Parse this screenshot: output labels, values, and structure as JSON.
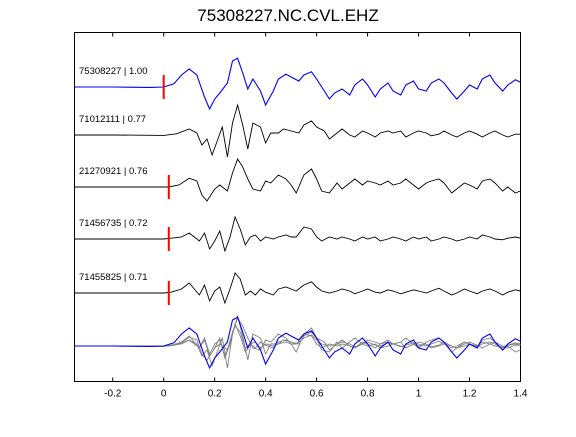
{
  "chart_data": {
    "type": "line",
    "title": "75308227.NC.CVL.EHZ",
    "xlabel": "",
    "ylabel": "",
    "xlim": [
      -0.35,
      1.4
    ],
    "x_ticks": [
      -0.2,
      0,
      0.2,
      0.4,
      0.6,
      0.8,
      1,
      1.2,
      1.4
    ],
    "x_tick_labels": [
      "-0.2",
      "0",
      "0.2",
      "0.4",
      "0.6",
      "0.8",
      "1",
      "1.2",
      "1.4"
    ],
    "grid": false,
    "colors": {
      "reference": "#0000ff",
      "match": "#000000",
      "overlay_match": "#808080",
      "pick_marker": "#ff0000"
    },
    "traces": [
      {
        "label": "75308227 | 1.00",
        "color_role": "reference",
        "pick_time": 0.0,
        "points": [
          [
            -0.35,
            0
          ],
          [
            -0.2,
            0
          ],
          [
            -0.05,
            -0.01
          ],
          [
            0,
            0
          ],
          [
            0.04,
            0.08
          ],
          [
            0.07,
            0.3
          ],
          [
            0.1,
            0.45
          ],
          [
            0.13,
            0.3
          ],
          [
            0.16,
            -0.25
          ],
          [
            0.18,
            -0.55
          ],
          [
            0.2,
            -0.3
          ],
          [
            0.22,
            -0.15
          ],
          [
            0.25,
            0.1
          ],
          [
            0.27,
            0.65
          ],
          [
            0.29,
            0.72
          ],
          [
            0.31,
            0.35
          ],
          [
            0.33,
            -0.05
          ],
          [
            0.35,
            0.2
          ],
          [
            0.38,
            -0.1
          ],
          [
            0.4,
            -0.45
          ],
          [
            0.43,
            -0.1
          ],
          [
            0.45,
            0.2
          ],
          [
            0.48,
            0.32
          ],
          [
            0.5,
            0.25
          ],
          [
            0.53,
            0.15
          ],
          [
            0.55,
            0.3
          ],
          [
            0.58,
            0.38
          ],
          [
            0.6,
            0.2
          ],
          [
            0.63,
            -0.1
          ],
          [
            0.65,
            -0.3
          ],
          [
            0.67,
            -0.15
          ],
          [
            0.7,
            -0.05
          ],
          [
            0.73,
            -0.2
          ],
          [
            0.75,
            0.05
          ],
          [
            0.78,
            0.2
          ],
          [
            0.8,
            0.05
          ],
          [
            0.83,
            -0.25
          ],
          [
            0.85,
            -0.05
          ],
          [
            0.88,
            0.1
          ],
          [
            0.9,
            -0.1
          ],
          [
            0.93,
            -0.2
          ],
          [
            0.95,
            0.05
          ],
          [
            0.98,
            0.15
          ],
          [
            1.0,
            -0.05
          ],
          [
            1.03,
            -0.1
          ],
          [
            1.05,
            0.1
          ],
          [
            1.08,
            0.2
          ],
          [
            1.1,
            0.1
          ],
          [
            1.13,
            -0.15
          ],
          [
            1.15,
            -0.3
          ],
          [
            1.18,
            -0.1
          ],
          [
            1.2,
            0.05
          ],
          [
            1.23,
            -0.05
          ],
          [
            1.25,
            0.2
          ],
          [
            1.28,
            0.3
          ],
          [
            1.3,
            0.1
          ],
          [
            1.33,
            -0.1
          ],
          [
            1.35,
            0.05
          ],
          [
            1.38,
            0.18
          ],
          [
            1.4,
            0.12
          ]
        ]
      },
      {
        "label": "71012111 | 0.77",
        "color_role": "match",
        "pick_time": null,
        "points": [
          [
            -0.35,
            0
          ],
          [
            -0.2,
            0
          ],
          [
            0,
            -0.01
          ],
          [
            0.05,
            0.03
          ],
          [
            0.1,
            0.15
          ],
          [
            0.13,
            0.05
          ],
          [
            0.15,
            -0.25
          ],
          [
            0.17,
            -0.1
          ],
          [
            0.19,
            -0.5
          ],
          [
            0.21,
            -0.15
          ],
          [
            0.23,
            0.2
          ],
          [
            0.25,
            -0.55
          ],
          [
            0.27,
            0.3
          ],
          [
            0.29,
            0.75
          ],
          [
            0.31,
            0.25
          ],
          [
            0.33,
            -0.35
          ],
          [
            0.35,
            0.3
          ],
          [
            0.38,
            0.2
          ],
          [
            0.4,
            -0.2
          ],
          [
            0.42,
            0.05
          ],
          [
            0.45,
            0.05
          ],
          [
            0.47,
            0.15
          ],
          [
            0.5,
            0.1
          ],
          [
            0.53,
            0.05
          ],
          [
            0.55,
            0.25
          ],
          [
            0.58,
            0.35
          ],
          [
            0.6,
            0.2
          ],
          [
            0.63,
            0.1
          ],
          [
            0.65,
            -0.1
          ],
          [
            0.68,
            0.05
          ],
          [
            0.7,
            0.15
          ],
          [
            0.73,
            0
          ],
          [
            0.75,
            -0.05
          ],
          [
            0.78,
            0.1
          ],
          [
            0.8,
            0.05
          ],
          [
            0.83,
            -0.05
          ],
          [
            0.85,
            0.05
          ],
          [
            0.88,
            0.1
          ],
          [
            0.9,
            0.05
          ],
          [
            0.93,
            0.1
          ],
          [
            0.95,
            -0.05
          ],
          [
            0.98,
            0.05
          ],
          [
            1.0,
            0.1
          ],
          [
            1.03,
            0.05
          ],
          [
            1.05,
            -0.02
          ],
          [
            1.08,
            0.02
          ],
          [
            1.1,
            0.1
          ],
          [
            1.13,
            0
          ],
          [
            1.15,
            -0.05
          ],
          [
            1.18,
            0.05
          ],
          [
            1.2,
            0.1
          ],
          [
            1.23,
            0.02
          ],
          [
            1.25,
            -0.05
          ],
          [
            1.28,
            0.05
          ],
          [
            1.3,
            0.1
          ],
          [
            1.33,
            0
          ],
          [
            1.35,
            -0.05
          ],
          [
            1.38,
            0.02
          ],
          [
            1.4,
            0.02
          ]
        ]
      },
      {
        "label": "21270921 | 0.76",
        "color_role": "match",
        "pick_time": 0.02,
        "points": [
          [
            -0.35,
            0
          ],
          [
            -0.2,
            0
          ],
          [
            0,
            0
          ],
          [
            0.02,
            0
          ],
          [
            0.06,
            0.05
          ],
          [
            0.1,
            0.22
          ],
          [
            0.13,
            0.15
          ],
          [
            0.15,
            -0.2
          ],
          [
            0.17,
            -0.35
          ],
          [
            0.2,
            -0.05
          ],
          [
            0.22,
            0.05
          ],
          [
            0.25,
            -0.1
          ],
          [
            0.27,
            0.35
          ],
          [
            0.29,
            0.7
          ],
          [
            0.31,
            0.5
          ],
          [
            0.33,
            0.2
          ],
          [
            0.35,
            -0.05
          ],
          [
            0.38,
            -0.1
          ],
          [
            0.4,
            0.15
          ],
          [
            0.42,
            0.1
          ],
          [
            0.45,
            0.3
          ],
          [
            0.48,
            0.2
          ],
          [
            0.5,
            0.05
          ],
          [
            0.52,
            -0.15
          ],
          [
            0.55,
            0.3
          ],
          [
            0.58,
            0.45
          ],
          [
            0.6,
            0.2
          ],
          [
            0.62,
            -0.1
          ],
          [
            0.65,
            -0.15
          ],
          [
            0.68,
            0.1
          ],
          [
            0.7,
            -0.05
          ],
          [
            0.73,
            0.1
          ],
          [
            0.75,
            0.2
          ],
          [
            0.78,
            0.05
          ],
          [
            0.8,
            0.15
          ],
          [
            0.83,
            0.1
          ],
          [
            0.85,
            0.05
          ],
          [
            0.88,
            0.15
          ],
          [
            0.9,
            0.05
          ],
          [
            0.93,
            0.1
          ],
          [
            0.95,
            0.2
          ],
          [
            0.98,
            0.05
          ],
          [
            1.0,
            -0.05
          ],
          [
            1.03,
            0.1
          ],
          [
            1.05,
            0.15
          ],
          [
            1.08,
            0.2
          ],
          [
            1.1,
            0.1
          ],
          [
            1.13,
            -0.15
          ],
          [
            1.15,
            -0.05
          ],
          [
            1.18,
            0.1
          ],
          [
            1.2,
            0.05
          ],
          [
            1.23,
            -0.05
          ],
          [
            1.25,
            0.15
          ],
          [
            1.28,
            0.2
          ],
          [
            1.3,
            0.1
          ],
          [
            1.33,
            -0.1
          ],
          [
            1.35,
            0
          ],
          [
            1.38,
            -0.15
          ],
          [
            1.4,
            -0.1
          ]
        ]
      },
      {
        "label": "71456735 | 0.72",
        "color_role": "match",
        "pick_time": 0.02,
        "points": [
          [
            -0.35,
            0
          ],
          [
            -0.2,
            0
          ],
          [
            0,
            0
          ],
          [
            0.03,
            0.02
          ],
          [
            0.07,
            0.05
          ],
          [
            0.1,
            0.15
          ],
          [
            0.12,
            0.05
          ],
          [
            0.14,
            -0.05
          ],
          [
            0.16,
            0.15
          ],
          [
            0.18,
            -0.25
          ],
          [
            0.2,
            -0.05
          ],
          [
            0.22,
            0.2
          ],
          [
            0.24,
            -0.3
          ],
          [
            0.26,
            0.05
          ],
          [
            0.28,
            0.55
          ],
          [
            0.3,
            0.25
          ],
          [
            0.32,
            -0.15
          ],
          [
            0.34,
            0.05
          ],
          [
            0.36,
            0.1
          ],
          [
            0.38,
            -0.05
          ],
          [
            0.4,
            0.05
          ],
          [
            0.43,
            0
          ],
          [
            0.45,
            0.05
          ],
          [
            0.48,
            0.1
          ],
          [
            0.5,
            0.05
          ],
          [
            0.52,
            0.05
          ],
          [
            0.55,
            0.3
          ],
          [
            0.58,
            0.25
          ],
          [
            0.6,
            0.05
          ],
          [
            0.62,
            -0.05
          ],
          [
            0.65,
            0.05
          ],
          [
            0.68,
            0
          ],
          [
            0.7,
            0.05
          ],
          [
            0.73,
            0
          ],
          [
            0.75,
            -0.05
          ],
          [
            0.78,
            0.05
          ],
          [
            0.8,
            0
          ],
          [
            0.83,
            0.05
          ],
          [
            0.85,
            -0.05
          ],
          [
            0.88,
            0
          ],
          [
            0.9,
            0.05
          ],
          [
            0.93,
            0
          ],
          [
            0.95,
            -0.05
          ],
          [
            0.98,
            0.05
          ],
          [
            1.0,
            0
          ],
          [
            1.03,
            0.05
          ],
          [
            1.05,
            -0.05
          ],
          [
            1.08,
            0
          ],
          [
            1.1,
            0.05
          ],
          [
            1.13,
            0
          ],
          [
            1.15,
            -0.05
          ],
          [
            1.18,
            0
          ],
          [
            1.2,
            0.05
          ],
          [
            1.23,
            0
          ],
          [
            1.25,
            0.1
          ],
          [
            1.28,
            0.05
          ],
          [
            1.3,
            0
          ],
          [
            1.33,
            -0.02
          ],
          [
            1.35,
            0.02
          ],
          [
            1.38,
            0.05
          ],
          [
            1.4,
            0.02
          ]
        ]
      },
      {
        "label": "71455825 | 0.71",
        "color_role": "match",
        "pick_time": 0.02,
        "points": [
          [
            -0.35,
            0
          ],
          [
            -0.2,
            0
          ],
          [
            0,
            0
          ],
          [
            0.03,
            0.02
          ],
          [
            0.07,
            0.1
          ],
          [
            0.1,
            0.25
          ],
          [
            0.12,
            0.1
          ],
          [
            0.14,
            -0.05
          ],
          [
            0.16,
            0.2
          ],
          [
            0.18,
            -0.2
          ],
          [
            0.2,
            0.05
          ],
          [
            0.22,
            0.15
          ],
          [
            0.24,
            -0.25
          ],
          [
            0.26,
            0.1
          ],
          [
            0.28,
            0.5
          ],
          [
            0.3,
            0.35
          ],
          [
            0.32,
            -0.05
          ],
          [
            0.34,
            0.05
          ],
          [
            0.36,
            -0.05
          ],
          [
            0.38,
            0.1
          ],
          [
            0.4,
            0.02
          ],
          [
            0.43,
            -0.05
          ],
          [
            0.45,
            0.1
          ],
          [
            0.48,
            0.15
          ],
          [
            0.5,
            0.1
          ],
          [
            0.52,
            0.05
          ],
          [
            0.55,
            0.2
          ],
          [
            0.58,
            0.28
          ],
          [
            0.6,
            0.15
          ],
          [
            0.62,
            0.05
          ],
          [
            0.65,
            0
          ],
          [
            0.68,
            0.05
          ],
          [
            0.7,
            0.1
          ],
          [
            0.73,
            0.05
          ],
          [
            0.75,
            -0.02
          ],
          [
            0.78,
            0.05
          ],
          [
            0.8,
            0.1
          ],
          [
            0.83,
            0.02
          ],
          [
            0.85,
            0
          ],
          [
            0.88,
            0.08
          ],
          [
            0.9,
            0.05
          ],
          [
            0.93,
            -0.02
          ],
          [
            0.95,
            0.02
          ],
          [
            0.98,
            0.08
          ],
          [
            1.0,
            0.05
          ],
          [
            1.03,
            0
          ],
          [
            1.05,
            0.05
          ],
          [
            1.08,
            0.12
          ],
          [
            1.1,
            0.05
          ],
          [
            1.13,
            -0.05
          ],
          [
            1.15,
            0
          ],
          [
            1.18,
            0.1
          ],
          [
            1.2,
            0.05
          ],
          [
            1.23,
            -0.02
          ],
          [
            1.25,
            0.05
          ],
          [
            1.28,
            0.1
          ],
          [
            1.3,
            0.05
          ],
          [
            1.33,
            -0.05
          ],
          [
            1.35,
            0.02
          ],
          [
            1.38,
            0.08
          ],
          [
            1.4,
            0.05
          ]
        ]
      }
    ]
  }
}
